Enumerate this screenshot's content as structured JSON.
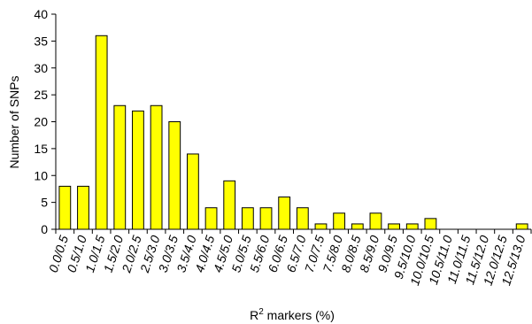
{
  "chart_data": {
    "type": "bar",
    "xlabel_main": "R",
    "xlabel_sup": "2",
    "xlabel_rest": " markers (%)",
    "ylabel": "Number of SNPs",
    "ylim": [
      0,
      40
    ],
    "yticks": [
      0,
      5,
      10,
      15,
      20,
      25,
      30,
      35,
      40
    ],
    "grid": false,
    "bar_color": "#ffff00",
    "categories": [
      "0.0/0.5",
      "0.5/1.0",
      "1.0/1.5",
      "1.5/2.0",
      "2.0/2.5",
      "2.5/3.0",
      "3.0/3.5",
      "3.5/4.0",
      "4.0/4.5",
      "4.5/5.0",
      "5.0/5.5",
      "5.5/6.0",
      "6.0/6.5",
      "6.5/7.0",
      "7.0/7.5",
      "7.5/8.0",
      "8.0/8.5",
      "8.5/9.0",
      "9.0/9.5",
      "9.5/10.0",
      "10.0/10.5",
      "10.5/11.0",
      "11.0/11.5",
      "11.5/12.0",
      "12.0/12.5",
      "12.5/13.0"
    ],
    "values": [
      8,
      8,
      36,
      23,
      22,
      23,
      20,
      14,
      4,
      9,
      4,
      4,
      6,
      4,
      1,
      3,
      1,
      3,
      1,
      1,
      2,
      0,
      0,
      0,
      0,
      1
    ]
  }
}
